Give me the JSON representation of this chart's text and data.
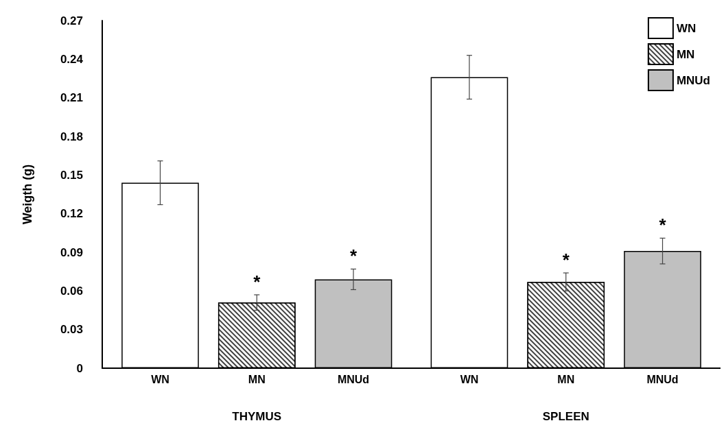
{
  "chart_data": {
    "type": "bar",
    "ylabel": "Weigth (g)",
    "categories": [
      "THYMUS",
      "SPLEEN"
    ],
    "series": [
      {
        "name": "WN",
        "color": "#ffffff",
        "values": [
          0.144,
          0.226
        ],
        "errors": [
          0.017,
          0.017
        ]
      },
      {
        "name": "MN",
        "color": "#404040",
        "values": [
          0.051,
          0.067
        ],
        "errors": [
          0.006,
          0.007
        ],
        "value_labels": [
          "*",
          "*"
        ]
      },
      {
        "name": "MNUd",
        "color": "#c0c0c0",
        "values": [
          0.069,
          0.091
        ],
        "errors": [
          0.008,
          0.01
        ],
        "value_labels": [
          "*",
          "*"
        ]
      }
    ],
    "ylim": [
      0,
      0.27
    ],
    "yticks": [
      0,
      0.03,
      0.06,
      0.09,
      0.12,
      0.15,
      0.18,
      0.21,
      0.24,
      0.27
    ],
    "grid": false,
    "legend": "top right"
  }
}
